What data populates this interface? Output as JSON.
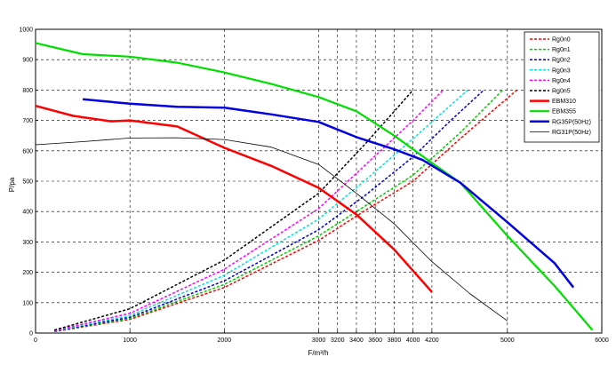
{
  "chart_data": {
    "type": "line",
    "xlabel": "F/m³/h",
    "ylabel": "P/pa",
    "xlim": [
      0,
      6000
    ],
    "ylim": [
      0,
      1000
    ],
    "x_ticks": [
      0,
      1000,
      2000,
      3000,
      3200,
      3400,
      3600,
      3800,
      4000,
      4200,
      5000,
      6000
    ],
    "y_ticks": [
      0,
      100,
      200,
      300,
      400,
      500,
      600,
      700,
      800,
      900,
      1000
    ],
    "grid": true,
    "legend_position": "top-right",
    "series": [
      {
        "name": "Rg0n0",
        "color": "#ff0000",
        "dashed": true,
        "width": 1.5,
        "points": [
          [
            200,
            5
          ],
          [
            1000,
            45
          ],
          [
            2000,
            150
          ],
          [
            3000,
            305
          ],
          [
            3500,
            405
          ],
          [
            4000,
            500
          ],
          [
            4500,
            640
          ],
          [
            5100,
            800
          ]
        ]
      },
      {
        "name": "Rg0n1",
        "color": "#00cc00",
        "dashed": true,
        "width": 1.5,
        "points": [
          [
            200,
            6
          ],
          [
            1000,
            48
          ],
          [
            2000,
            160
          ],
          [
            3000,
            320
          ],
          [
            3500,
            420
          ],
          [
            4000,
            520
          ],
          [
            4500,
            660
          ],
          [
            4950,
            800
          ]
        ]
      },
      {
        "name": "Rg0n2",
        "color": "#0000cc",
        "dashed": true,
        "width": 1.5,
        "points": [
          [
            200,
            6
          ],
          [
            1000,
            52
          ],
          [
            2000,
            172
          ],
          [
            3000,
            340
          ],
          [
            3500,
            455
          ],
          [
            4000,
            580
          ],
          [
            4400,
            700
          ],
          [
            4750,
            800
          ]
        ]
      },
      {
        "name": "Rg0n3",
        "color": "#00e0e0",
        "dashed": true,
        "width": 1.5,
        "points": [
          [
            200,
            7
          ],
          [
            1000,
            58
          ],
          [
            2000,
            190
          ],
          [
            3000,
            375
          ],
          [
            3500,
            505
          ],
          [
            4000,
            640
          ],
          [
            4580,
            800
          ]
        ]
      },
      {
        "name": "Rg0n4",
        "color": "#ff00ff",
        "dashed": true,
        "width": 1.5,
        "points": [
          [
            200,
            8
          ],
          [
            1000,
            65
          ],
          [
            2000,
            210
          ],
          [
            3000,
            410
          ],
          [
            3500,
            555
          ],
          [
            4000,
            700
          ],
          [
            4320,
            800
          ]
        ]
      },
      {
        "name": "Rg0n5",
        "color": "#000000",
        "dashed": true,
        "width": 1.5,
        "points": [
          [
            200,
            10
          ],
          [
            1000,
            80
          ],
          [
            2000,
            240
          ],
          [
            3000,
            460
          ],
          [
            3500,
            625
          ],
          [
            4000,
            800
          ]
        ]
      },
      {
        "name": "EBM310",
        "color": "#ff0000",
        "dashed": false,
        "width": 2.5,
        "points": [
          [
            0,
            748
          ],
          [
            400,
            715
          ],
          [
            800,
            697
          ],
          [
            1000,
            700
          ],
          [
            1500,
            680
          ],
          [
            2000,
            610
          ],
          [
            2500,
            550
          ],
          [
            3000,
            478
          ],
          [
            3400,
            390
          ],
          [
            3800,
            275
          ],
          [
            4200,
            135
          ]
        ]
      },
      {
        "name": "EBM355",
        "color": "#00dd00",
        "dashed": false,
        "width": 2.2,
        "points": [
          [
            0,
            955
          ],
          [
            500,
            918
          ],
          [
            1000,
            910
          ],
          [
            1500,
            890
          ],
          [
            2000,
            858
          ],
          [
            2500,
            820
          ],
          [
            3000,
            777
          ],
          [
            3400,
            730
          ],
          [
            3800,
            650
          ],
          [
            4200,
            560
          ],
          [
            4500,
            495
          ],
          [
            5000,
            320
          ],
          [
            5500,
            155
          ],
          [
            5900,
            10
          ]
        ]
      },
      {
        "name": "RG35P(50Hz)",
        "color": "#0000dd",
        "dashed": false,
        "width": 2.5,
        "points": [
          [
            500,
            770
          ],
          [
            1000,
            755
          ],
          [
            1500,
            745
          ],
          [
            2000,
            742
          ],
          [
            2500,
            720
          ],
          [
            3000,
            695
          ],
          [
            3400,
            645
          ],
          [
            3800,
            605
          ],
          [
            4100,
            570
          ],
          [
            4500,
            495
          ],
          [
            5000,
            365
          ],
          [
            5500,
            230
          ],
          [
            5700,
            150
          ]
        ]
      },
      {
        "name": "RG31P(50Hz)",
        "color": "#000000",
        "dashed": false,
        "width": 0.8,
        "points": [
          [
            0,
            620
          ],
          [
            500,
            630
          ],
          [
            1000,
            642
          ],
          [
            1500,
            643
          ],
          [
            2000,
            637
          ],
          [
            2500,
            612
          ],
          [
            3000,
            555
          ],
          [
            3400,
            460
          ],
          [
            3800,
            360
          ],
          [
            4200,
            235
          ],
          [
            4600,
            130
          ],
          [
            5000,
            40
          ]
        ]
      }
    ]
  }
}
